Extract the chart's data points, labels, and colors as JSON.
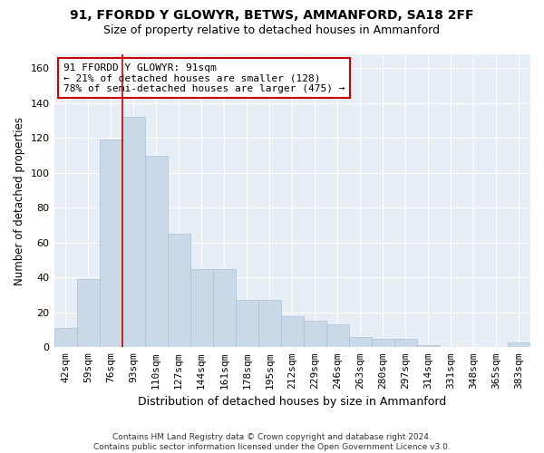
{
  "title1": "91, FFORDD Y GLOWYR, BETWS, AMMANFORD, SA18 2FF",
  "title2": "Size of property relative to detached houses in Ammanford",
  "xlabel": "Distribution of detached houses by size in Ammanford",
  "ylabel": "Number of detached properties",
  "categories": [
    "42sqm",
    "59sqm",
    "76sqm",
    "93sqm",
    "110sqm",
    "127sqm",
    "144sqm",
    "161sqm",
    "178sqm",
    "195sqm",
    "212sqm",
    "229sqm",
    "246sqm",
    "263sqm",
    "280sqm",
    "297sqm",
    "314sqm",
    "331sqm",
    "348sqm",
    "365sqm",
    "383sqm"
  ],
  "values": [
    11,
    39,
    119,
    132,
    110,
    65,
    45,
    45,
    27,
    27,
    18,
    15,
    13,
    6,
    5,
    5,
    1,
    0,
    0,
    0,
    3
  ],
  "bar_color": "#c9d9e8",
  "bar_edge_color": "#aabfd4",
  "vline_x": 2.5,
  "vline_color": "#cc0000",
  "annotation_text": "91 FFORDD Y GLOWYR: 91sqm\n← 21% of detached houses are smaller (128)\n78% of semi-detached houses are larger (475) →",
  "annotation_box_color": "white",
  "annotation_box_edge": "#cc0000",
  "ylim": [
    0,
    168
  ],
  "yticks": [
    0,
    20,
    40,
    60,
    80,
    100,
    120,
    140,
    160
  ],
  "plot_bg": "#e8eef5",
  "footer": "Contains HM Land Registry data © Crown copyright and database right 2024.\nContains public sector information licensed under the Open Government Licence v3.0.",
  "title1_fontsize": 10,
  "title2_fontsize": 9,
  "xlabel_fontsize": 9,
  "ylabel_fontsize": 8.5,
  "tick_fontsize": 8,
  "annotation_fontsize": 8
}
